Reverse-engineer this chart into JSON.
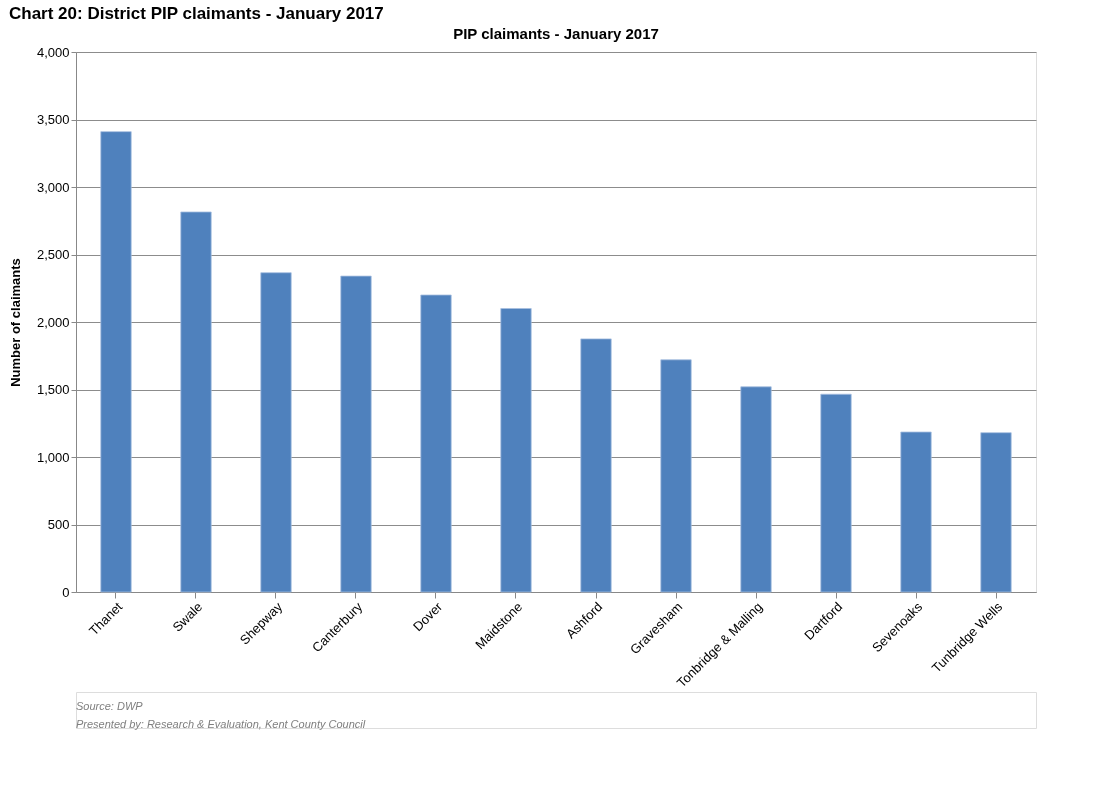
{
  "chart_data": {
    "type": "bar",
    "title": "Chart 20: District PIP claimants - January 2017",
    "subtitle": "PIP claimants - January 2017",
    "ylabel": "Number of claimants",
    "categories": [
      "Thanet",
      "Swale",
      "Shepway",
      "Canterbury",
      "Dover",
      "Maidstone",
      "Ashford",
      "Gravesham",
      "Tonbridge & Malling",
      "Dartford",
      "Sevenoaks",
      "Tunbridge Wells"
    ],
    "values": [
      3410,
      2815,
      2365,
      2340,
      2200,
      2100,
      1875,
      1720,
      1520,
      1465,
      1185,
      1180
    ],
    "color": "#4f81bd",
    "ylim": [
      0,
      4000
    ],
    "yticks": [
      {
        "value": 0,
        "label": "0"
      },
      {
        "value": 500,
        "label": "500"
      },
      {
        "value": 1000,
        "label": "1,000"
      },
      {
        "value": 1500,
        "label": "1,500"
      },
      {
        "value": 2000,
        "label": "2,000"
      },
      {
        "value": 2500,
        "label": "2,500"
      },
      {
        "value": 3000,
        "label": "3,000"
      },
      {
        "value": 3500,
        "label": "3,500"
      },
      {
        "value": 4000,
        "label": "4,000"
      }
    ],
    "grid": "y",
    "annotations": [
      "Source: DWP",
      "Presented by: Research & Evaluation, Kent County Council"
    ]
  }
}
